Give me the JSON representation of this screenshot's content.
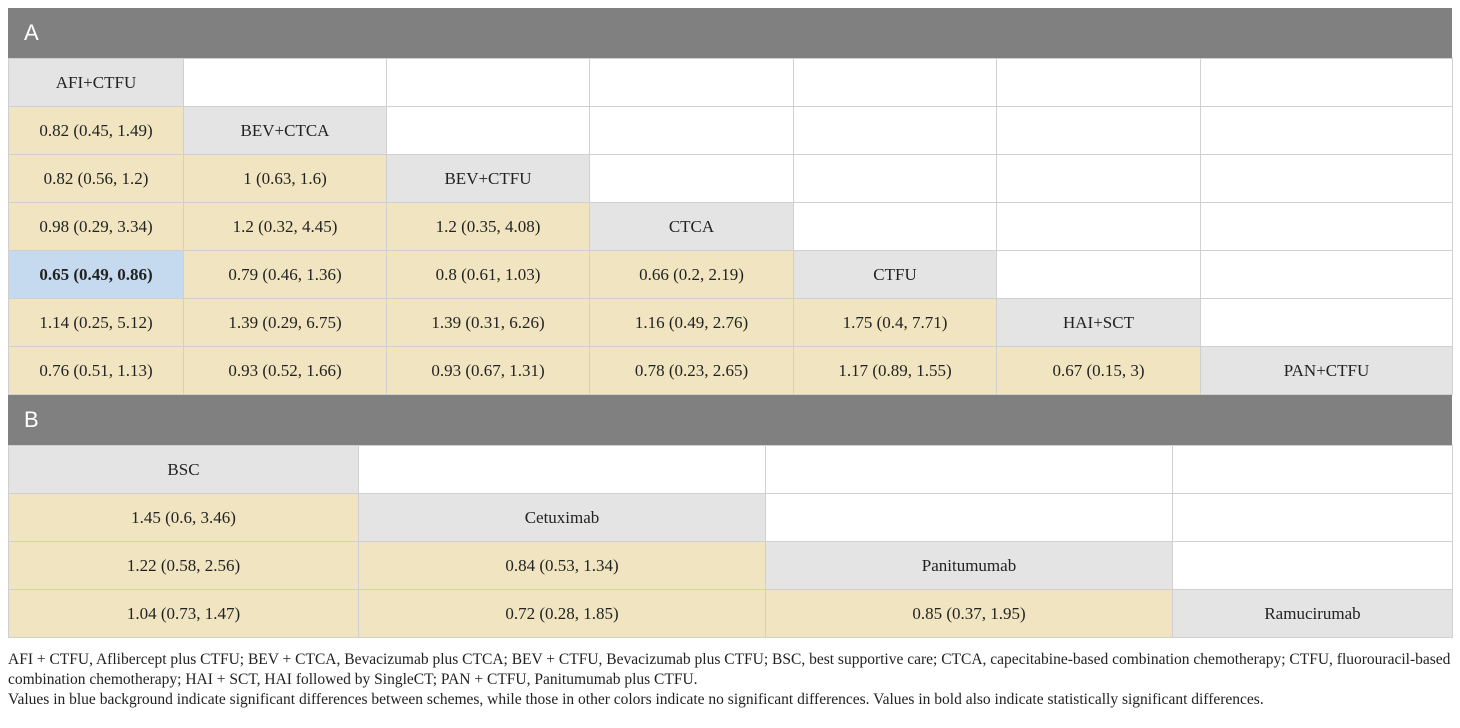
{
  "section_a": {
    "label": "A",
    "rows": [
      [
        "AFI+CTFU"
      ],
      [
        "0.82 (0.45, 1.49)",
        "BEV+CTCA"
      ],
      [
        "0.82 (0.56, 1.2)",
        "1 (0.63, 1.6)",
        "BEV+CTFU"
      ],
      [
        "0.98 (0.29, 3.34)",
        "1.2 (0.32, 4.45)",
        "1.2 (0.35, 4.08)",
        "CTCA"
      ],
      [
        "0.65 (0.49, 0.86)",
        "0.79 (0.46, 1.36)",
        "0.8 (0.61, 1.03)",
        "0.66 (0.2, 2.19)",
        "CTFU"
      ],
      [
        "1.14 (0.25, 5.12)",
        "1.39 (0.29, 6.75)",
        "1.39 (0.31, 6.26)",
        "1.16 (0.49, 2.76)",
        "1.75 (0.4, 7.71)",
        "HAI+SCT"
      ],
      [
        "0.76 (0.51, 1.13)",
        "0.93 (0.52, 1.66)",
        "0.93 (0.67, 1.31)",
        "0.78 (0.23, 2.65)",
        "1.17 (0.89, 1.55)",
        "0.67 (0.15, 3)",
        "PAN+CTFU"
      ]
    ],
    "significant_cell": {
      "row": 4,
      "col": 0
    }
  },
  "section_b": {
    "label": "B",
    "rows": [
      [
        "BSC"
      ],
      [
        "1.45 (0.6, 3.46)",
        "Cetuximab"
      ],
      [
        "1.22 (0.58, 2.56)",
        "0.84 (0.53, 1.34)",
        "Panitumumab"
      ],
      [
        "1.04 (0.73, 1.47)",
        "0.72 (0.28, 1.85)",
        "0.85 (0.37, 1.95)",
        "Ramucirumab"
      ]
    ]
  },
  "colors": {
    "header": "#808080",
    "diagonal": "#e4e4e4",
    "nonsignificant": "#f0e5c0",
    "significant": "#c5d9ef"
  },
  "footnotes": {
    "abbreviations": "AFI + CTFU, Aflibercept plus CTFU; BEV + CTCA, Bevacizumab plus CTCA; BEV + CTFU, Bevacizumab plus CTFU; BSC, best supportive care; CTCA, capecitabine-based combination chemotherapy; CTFU, fluorouracil-based combination chemotherapy; HAI + SCT, HAI followed by SingleCT; PAN + CTFU, Panitumumab plus CTFU.",
    "legend": "Values in blue background indicate significant differences between schemes, while those in other colors indicate no significant differences. Values in bold also indicate statistically significant differences."
  }
}
